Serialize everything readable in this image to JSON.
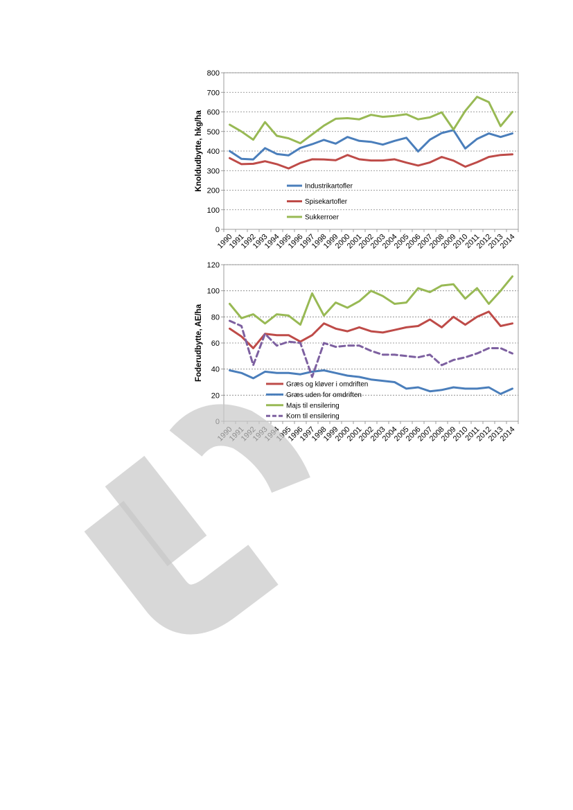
{
  "watermark": {
    "text": "Ud"
  },
  "colors": {
    "blue": "#4a7ebb",
    "red": "#be4b48",
    "green": "#98b954",
    "purple": "#7d60a0",
    "grid": "#808080",
    "axis": "#868686"
  },
  "chart_data": [
    {
      "type": "line",
      "ylabel": "Knoldudbytte, hkg/ha",
      "xlabel": "",
      "ylim": [
        0,
        800
      ],
      "yticks": [
        "0",
        "100",
        "200",
        "300",
        "400",
        "500",
        "600",
        "700",
        "800"
      ],
      "grid": "dashed horizontal",
      "legend_position": "bottom-left inside plot",
      "categories": [
        "1990",
        "1991",
        "1992",
        "1993",
        "1994",
        "1995",
        "1996",
        "1997",
        "1998",
        "1999",
        "2000",
        "2001",
        "2002",
        "2003",
        "2004",
        "2005",
        "2006",
        "2007",
        "2008",
        "2009",
        "2010",
        "2011",
        "2012",
        "2013",
        "2014"
      ],
      "series": [
        {
          "name": "Industrikartofler",
          "color": "#4a7ebb",
          "dashed": false,
          "values": [
            400,
            360,
            357,
            415,
            385,
            378,
            416,
            435,
            457,
            438,
            472,
            452,
            447,
            433,
            452,
            468,
            398,
            458,
            492,
            507,
            413,
            462,
            490,
            472,
            490
          ]
        },
        {
          "name": "Spisekartofler",
          "color": "#be4b48",
          "dashed": false,
          "values": [
            364,
            333,
            335,
            348,
            333,
            311,
            339,
            358,
            357,
            353,
            380,
            358,
            352,
            352,
            358,
            341,
            326,
            342,
            370,
            351,
            320,
            343,
            370,
            380,
            383
          ]
        },
        {
          "name": "Sukkerroer",
          "color": "#98b954",
          "dashed": false,
          "values": [
            535,
            500,
            458,
            548,
            478,
            465,
            440,
            485,
            530,
            565,
            568,
            562,
            585,
            575,
            580,
            588,
            562,
            572,
            598,
            510,
            605,
            677,
            650,
            527,
            600
          ]
        }
      ]
    },
    {
      "type": "line",
      "ylabel": "Foderudbytte, AE/ha",
      "xlabel": "",
      "ylim": [
        0,
        120
      ],
      "yticks": [
        "0",
        "20",
        "40",
        "60",
        "80",
        "100",
        "120"
      ],
      "grid": "dashed horizontal",
      "legend_position": "bottom-left inside plot",
      "categories": [
        "1990",
        "1991",
        "1992",
        "1993",
        "1994",
        "1995",
        "1996",
        "1997",
        "1998",
        "1999",
        "2000",
        "2001",
        "2002",
        "2003",
        "2004",
        "2005",
        "2006",
        "2007",
        "2008",
        "2009",
        "2010",
        "2011",
        "2012",
        "2013",
        "2014"
      ],
      "series": [
        {
          "name": "Græs og kløver i omdriften",
          "color": "#be4b48",
          "dashed": false,
          "values": [
            71,
            65,
            56,
            67,
            66,
            66,
            61,
            66,
            75,
            71,
            69,
            72,
            69,
            68,
            70,
            72,
            73,
            78,
            72,
            80,
            74,
            80,
            84,
            73,
            75
          ]
        },
        {
          "name": "Græs uden for omdriften",
          "color": "#4a7ebb",
          "dashed": false,
          "values": [
            39,
            37,
            33,
            38,
            37,
            37,
            36,
            38,
            39,
            37,
            35,
            34,
            32,
            31,
            30,
            25,
            26,
            23,
            24,
            26,
            25,
            25,
            26,
            21,
            25
          ]
        },
        {
          "name": "Majs til ensilering",
          "color": "#98b954",
          "dashed": false,
          "values": [
            90,
            79,
            82,
            75,
            82,
            81,
            74,
            98,
            81,
            91,
            87,
            92,
            100,
            96,
            90,
            91,
            102,
            99,
            104,
            105,
            94,
            102,
            90,
            100,
            111
          ]
        },
        {
          "name": "Korn til ensilering",
          "color": "#7d60a0",
          "dashed": true,
          "values": [
            77,
            73,
            43,
            67,
            58,
            61,
            60,
            34,
            60,
            57,
            58,
            58,
            54,
            51,
            51,
            50,
            49,
            51,
            43,
            47,
            49,
            52,
            56,
            56,
            52
          ]
        }
      ]
    }
  ]
}
